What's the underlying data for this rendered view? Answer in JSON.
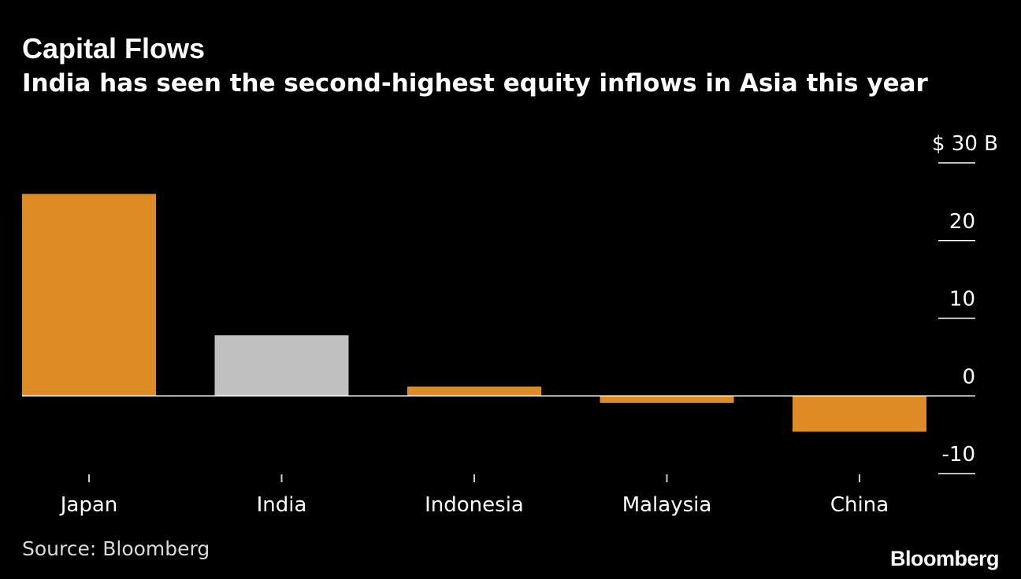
{
  "header": {
    "title": "Capital Flows",
    "subtitle": "India has seen the second-highest equity inflows in Asia this year"
  },
  "footer": {
    "source": "Source: Bloomberg",
    "logo": "Bloomberg"
  },
  "colors": {
    "background": "#000000",
    "bar_default": "#de8a25",
    "bar_highlight": "#c0c0c0",
    "zero_line": "#ffffff",
    "text": "#ffffff"
  },
  "chart_data": {
    "type": "bar",
    "categories": [
      "Japan",
      "India",
      "Indonesia",
      "Malaysia",
      "China"
    ],
    "values": [
      26,
      7.8,
      1.2,
      -0.9,
      -4.6
    ],
    "highlight": "India",
    "ylim": [
      -10,
      30
    ],
    "yticks": [
      -10,
      0,
      10,
      20,
      30
    ],
    "ytick_labels": [
      "-10",
      "0",
      "10",
      "20",
      "$ 30 B"
    ],
    "y_axis_side": "right",
    "grid": false
  }
}
